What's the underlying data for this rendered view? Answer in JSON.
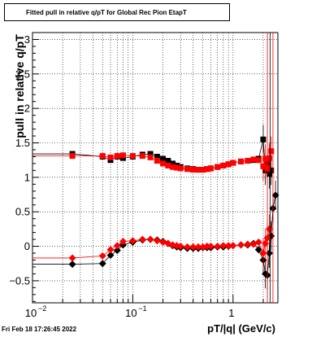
{
  "title": "Fitted pull in relative q/pT for Global Rec Pion EtapT",
  "timestamp": "Fri Feb 18 17:26:45 2022",
  "colors": {
    "black_series": "#000000",
    "red_series": "#ff0000"
  },
  "chart_data": {
    "type": "scatter",
    "title": "Fitted pull in relative q/pT for Global Rec Pion EtapT",
    "xlabel": "pT/|q| (GeV/c)",
    "ylabel": "pull in relative q/pT",
    "xscale": "log",
    "xlim": [
      0.01,
      2.8
    ],
    "ylim": [
      -0.82,
      3.1
    ],
    "grid": true,
    "xticks": [
      {
        "value": 0.01,
        "label": "10",
        "exp": "−2"
      },
      {
        "value": 0.1,
        "label": "10",
        "exp": "−1"
      },
      {
        "value": 1,
        "label": "1",
        "exp": ""
      }
    ],
    "yticks": [
      {
        "value": -0.5,
        "label": "−0.5"
      },
      {
        "value": 0,
        "label": "0"
      },
      {
        "value": 0.5,
        "label": "0.5"
      },
      {
        "value": 1,
        "label": "1"
      },
      {
        "value": 1.5,
        "label": "1.5"
      },
      {
        "value": 2,
        "label": "2"
      },
      {
        "value": 2.5,
        "label": "2.5"
      },
      {
        "value": 3,
        "label": "3"
      }
    ],
    "series": [
      {
        "color": "#000000",
        "marker": "square",
        "x": [
          0.025,
          0.05,
          0.06,
          0.07,
          0.08,
          0.1,
          0.125,
          0.15,
          0.175,
          0.2,
          0.225,
          0.25,
          0.275,
          0.3,
          0.35,
          0.4,
          0.45,
          0.5,
          0.55,
          0.6,
          0.7,
          0.8,
          0.9,
          1.0,
          1.2,
          1.4,
          1.6,
          1.8,
          2.0,
          2.1,
          2.2,
          2.3,
          2.4
        ],
        "y": [
          1.34,
          1.3,
          1.25,
          1.3,
          1.28,
          1.3,
          1.33,
          1.34,
          1.3,
          1.27,
          1.24,
          1.2,
          1.17,
          1.15,
          1.13,
          1.12,
          1.11,
          1.11,
          1.12,
          1.13,
          1.15,
          1.17,
          1.19,
          1.21,
          1.23,
          1.24,
          1.25,
          1.27,
          1.55,
          1.1,
          1.2,
          1.05,
          1.1
        ]
      },
      {
        "color": "#ff0000",
        "marker": "square",
        "x": [
          0.025,
          0.05,
          0.06,
          0.07,
          0.08,
          0.1,
          0.125,
          0.15,
          0.175,
          0.2,
          0.225,
          0.25,
          0.275,
          0.3,
          0.35,
          0.4,
          0.45,
          0.5,
          0.55,
          0.6,
          0.7,
          0.8,
          0.9,
          1.0,
          1.2,
          1.4,
          1.6,
          1.8,
          2.0,
          2.1,
          2.2,
          2.3,
          2.4
        ],
        "y": [
          1.31,
          1.31,
          1.29,
          1.31,
          1.32,
          1.31,
          1.31,
          1.29,
          1.24,
          1.2,
          1.17,
          1.15,
          1.14,
          1.13,
          1.12,
          1.11,
          1.11,
          1.11,
          1.12,
          1.13,
          1.15,
          1.17,
          1.19,
          1.21,
          1.23,
          1.24,
          1.26,
          1.25,
          1.16,
          1.27,
          1.13,
          1.28,
          1.38
        ]
      },
      {
        "color": "#000000",
        "marker": "diamond",
        "x": [
          0.025,
          0.05,
          0.06,
          0.07,
          0.08,
          0.1,
          0.125,
          0.15,
          0.175,
          0.2,
          0.225,
          0.25,
          0.275,
          0.3,
          0.35,
          0.4,
          0.45,
          0.5,
          0.55,
          0.6,
          0.7,
          0.8,
          0.9,
          1.0,
          1.2,
          1.4,
          1.6,
          1.8,
          2.0,
          2.1,
          2.2,
          2.3,
          2.4,
          2.5,
          2.65
        ],
        "y": [
          -0.26,
          -0.25,
          -0.13,
          -0.06,
          0.02,
          0.06,
          0.09,
          0.1,
          0.09,
          0.07,
          0.04,
          0.01,
          -0.01,
          -0.02,
          -0.03,
          -0.03,
          -0.03,
          -0.02,
          -0.02,
          -0.02,
          -0.01,
          -0.01,
          0.0,
          0.01,
          0.02,
          0.02,
          0.04,
          -0.05,
          -0.2,
          -0.4,
          -0.42,
          -0.1,
          0.15,
          0.55,
          0.74
        ]
      },
      {
        "color": "#ff0000",
        "marker": "diamond",
        "x": [
          0.025,
          0.05,
          0.06,
          0.07,
          0.08,
          0.1,
          0.125,
          0.15,
          0.175,
          0.2,
          0.225,
          0.25,
          0.275,
          0.3,
          0.35,
          0.4,
          0.45,
          0.5,
          0.55,
          0.6,
          0.7,
          0.8,
          0.9,
          1.0,
          1.2,
          1.4,
          1.6,
          1.8,
          2.0,
          2.1,
          2.2,
          2.3
        ],
        "y": [
          -0.17,
          -0.14,
          -0.05,
          0.01,
          0.07,
          0.08,
          0.1,
          0.1,
          0.08,
          0.06,
          0.04,
          0.02,
          0.01,
          0.0,
          -0.01,
          -0.01,
          -0.01,
          -0.01,
          0.0,
          0.0,
          0.0,
          0.01,
          0.01,
          0.01,
          0.02,
          0.03,
          0.03,
          0.06,
          -0.1,
          0.04,
          0.12,
          0.25
        ]
      }
    ]
  }
}
